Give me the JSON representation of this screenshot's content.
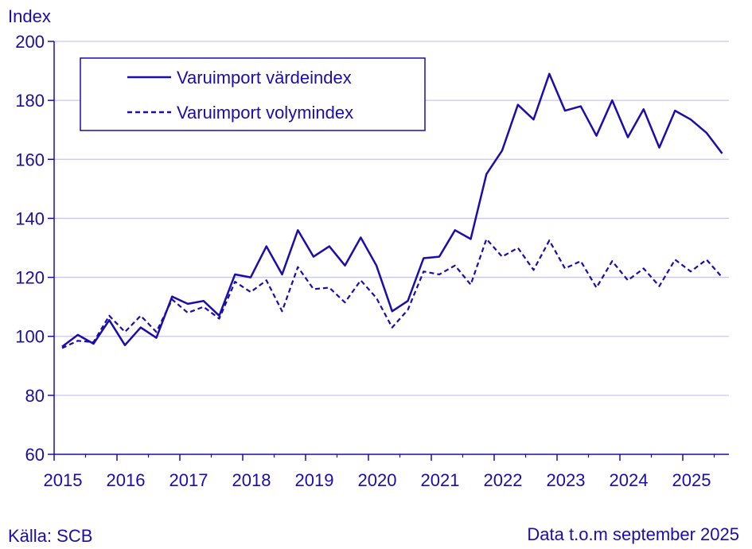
{
  "chart_data": {
    "type": "line",
    "ylabel": "Index",
    "ylim": [
      60,
      200
    ],
    "yticks": [
      "60",
      "80",
      "100",
      "120",
      "140",
      "160",
      "180",
      "200"
    ],
    "xticks": [
      "2015",
      "2016",
      "2017",
      "2018",
      "2019",
      "2020",
      "2021",
      "2022",
      "2023",
      "2024",
      "2025"
    ],
    "grid": true,
    "legend_position": "top-left",
    "colors": {
      "line": "#1a0dab",
      "grid": "#c8c8ec"
    },
    "series": [
      {
        "name": "Varuimport värdeindex",
        "style": "solid",
        "values": [
          96.5,
          100.5,
          97.5,
          105.5,
          97,
          103,
          99.5,
          113.5,
          111,
          112,
          107,
          121,
          120,
          130.5,
          121,
          136,
          127,
          130.5,
          124,
          133.5,
          124,
          108.5,
          112,
          126.5,
          127,
          136,
          133,
          155,
          163,
          178.5,
          173.5,
          189,
          176.5,
          178,
          168,
          180,
          167.5,
          177,
          164,
          176.5,
          173.5,
          169,
          162
        ]
      },
      {
        "name": "Varuimport volymindex",
        "style": "dashed",
        "values": [
          96,
          98.5,
          98,
          107,
          101.5,
          107,
          101.5,
          112.5,
          108,
          110,
          106,
          118.5,
          115,
          119,
          108.5,
          123.5,
          116,
          116.5,
          111.5,
          119,
          113,
          103,
          109,
          122,
          121,
          124,
          117.5,
          133,
          127,
          130,
          122.5,
          132.5,
          123,
          125.5,
          116.5,
          125.5,
          119,
          123,
          117,
          126,
          122,
          126,
          120
        ]
      }
    ]
  },
  "footer": {
    "source": "Källa: SCB",
    "note": "Data t.o.m september 2025"
  }
}
